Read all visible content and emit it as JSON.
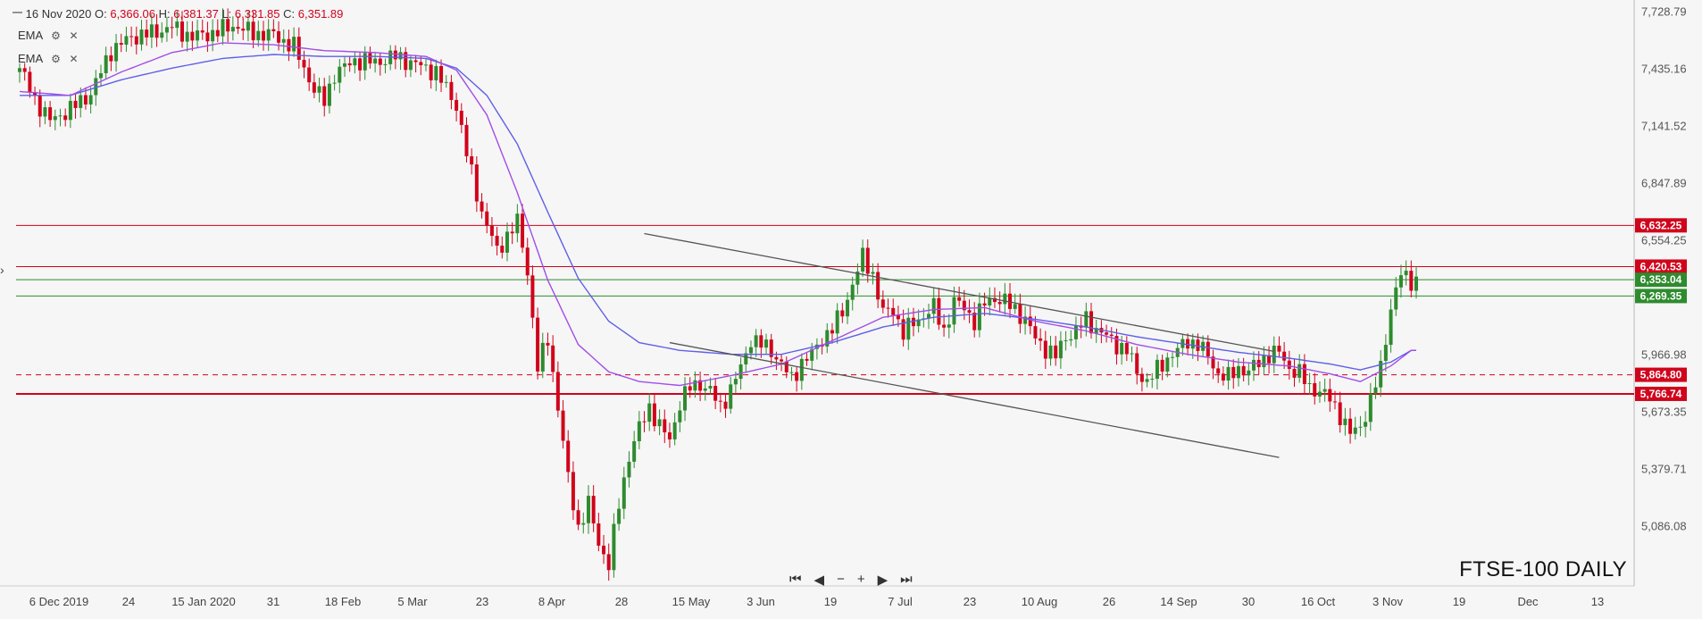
{
  "header": {
    "date": "16 Nov 2020",
    "o_label": "O:",
    "o_value": "6,366.06",
    "h_label": "H:",
    "h_value": "6,381.37",
    "l_label": "L:",
    "l_value": "6,331.85",
    "c_label": "C:",
    "c_value": "6,351.89"
  },
  "indicators": [
    {
      "label": "EMA",
      "color": "#a24de8"
    },
    {
      "label": "EMA",
      "color": "#5f5fe8"
    }
  ],
  "toolbar": {
    "first": "⏮",
    "prev": "◀",
    "zoom_out": "−",
    "zoom_in": "+",
    "next": "▶",
    "last": "⏭"
  },
  "watermark": "FTSE-100 DAILY",
  "chart_data": {
    "type": "candlestick",
    "title": "FTSE-100 DAILY",
    "x_tick_labels": [
      "6 Dec 2019",
      "24",
      "15 Jan 2020",
      "31",
      "18 Feb",
      "5 Mar",
      "23",
      "8 Apr",
      "28",
      "15 May",
      "3 Jun",
      "19",
      "7 Jul",
      "23",
      "10 Aug",
      "26",
      "14 Sep",
      "30",
      "16 Oct",
      "3 Nov",
      "19",
      "Dec",
      "13"
    ],
    "y_tick_labels": [
      "7,728.79",
      "7,435.16",
      "7,141.52",
      "6,847.89",
      "6,554.25",
      "5,966.98",
      "5,673.35",
      "5,379.71",
      "5,086.08"
    ],
    "ylim": [
      4780,
      7790
    ],
    "price_marker_labels": [
      {
        "label": "6,632.25",
        "value": 6632.25,
        "color": "#d0021b"
      },
      {
        "label": "6,420.53",
        "value": 6420.53,
        "color": "#d0021b"
      },
      {
        "label": "6,353.04",
        "value": 6353.04,
        "color": "#2e8b2e"
      },
      {
        "label": "6,269.35",
        "value": 6269.35,
        "color": "#2e8b2e"
      },
      {
        "label": "5,864.80",
        "value": 5864.8,
        "color": "#d0021b"
      },
      {
        "label": "5,766.74",
        "value": 5766.74,
        "color": "#d0021b"
      }
    ],
    "horizontal_lines": [
      {
        "value": 6632.25,
        "color": "#d0021b",
        "style": "solid"
      },
      {
        "value": 6420.53,
        "color": "#d0021b",
        "style": "solid"
      },
      {
        "value": 6353.04,
        "color": "#2e8b2e",
        "style": "solid"
      },
      {
        "value": 6269.35,
        "color": "#2e8b2e",
        "style": "solid"
      },
      {
        "value": 5864.8,
        "color": "#d0021b",
        "style": "dashed"
      },
      {
        "value": 5766.74,
        "color": "#d0021b",
        "style": "solid-thick"
      }
    ],
    "trendlines": [
      {
        "from": {
          "date": "2020-05-22",
          "value": 6590
        },
        "to": {
          "date": "2020-11-12",
          "value": 5985
        }
      },
      {
        "from": {
          "date": "2020-05-29",
          "value": 6030
        },
        "to": {
          "date": "2020-11-13",
          "value": 5440
        }
      }
    ],
    "colors": {
      "up": "#2e8b2e",
      "down": "#d0021b",
      "ema_fast": "#a24de8",
      "ema_slow": "#5f5fe8",
      "trend": "#555555"
    },
    "close_anchors": [
      [
        0,
        7440
      ],
      [
        3,
        7280
      ],
      [
        6,
        7170
      ],
      [
        10,
        7230
      ],
      [
        14,
        7310
      ],
      [
        18,
        7530
      ],
      [
        22,
        7600
      ],
      [
        26,
        7620
      ],
      [
        30,
        7650
      ],
      [
        34,
        7600
      ],
      [
        38,
        7620
      ],
      [
        42,
        7660
      ],
      [
        46,
        7620
      ],
      [
        50,
        7610
      ],
      [
        54,
        7550
      ],
      [
        58,
        7330
      ],
      [
        60,
        7270
      ],
      [
        62,
        7410
      ],
      [
        66,
        7480
      ],
      [
        70,
        7470
      ],
      [
        74,
        7500
      ],
      [
        78,
        7460
      ],
      [
        82,
        7420
      ],
      [
        86,
        7250
      ],
      [
        88,
        7000
      ],
      [
        91,
        6700
      ],
      [
        94,
        6500
      ],
      [
        96,
        6580
      ],
      [
        98,
        6650
      ],
      [
        100,
        6400
      ],
      [
        102,
        5900
      ],
      [
        104,
        6050
      ],
      [
        106,
        5700
      ],
      [
        108,
        5330
      ],
      [
        110,
        5080
      ],
      [
        112,
        5200
      ],
      [
        114,
        5000
      ],
      [
        116,
        4890
      ],
      [
        118,
        5200
      ],
      [
        120,
        5450
      ],
      [
        122,
        5590
      ],
      [
        124,
        5700
      ],
      [
        126,
        5600
      ],
      [
        128,
        5530
      ],
      [
        130,
        5720
      ],
      [
        132,
        5800
      ],
      [
        134,
        5820
      ],
      [
        136,
        5780
      ],
      [
        138,
        5700
      ],
      [
        140,
        5790
      ],
      [
        142,
        5900
      ],
      [
        144,
        6050
      ],
      [
        146,
        6020
      ],
      [
        148,
        5990
      ],
      [
        150,
        5920
      ],
      [
        152,
        5840
      ],
      [
        154,
        5930
      ],
      [
        156,
        5970
      ],
      [
        158,
        6050
      ],
      [
        160,
        6100
      ],
      [
        162,
        6190
      ],
      [
        164,
        6330
      ],
      [
        166,
        6470
      ],
      [
        168,
        6380
      ],
      [
        170,
        6180
      ],
      [
        172,
        6200
      ],
      [
        174,
        6080
      ],
      [
        176,
        6130
      ],
      [
        178,
        6170
      ],
      [
        180,
        6210
      ],
      [
        182,
        6090
      ],
      [
        184,
        6240
      ],
      [
        186,
        6210
      ],
      [
        188,
        6140
      ],
      [
        190,
        6230
      ],
      [
        192,
        6260
      ],
      [
        194,
        6240
      ],
      [
        196,
        6200
      ],
      [
        198,
        6150
      ],
      [
        200,
        6050
      ],
      [
        202,
        6000
      ],
      [
        204,
        5960
      ],
      [
        206,
        6060
      ],
      [
        208,
        6090
      ],
      [
        210,
        6150
      ],
      [
        212,
        6100
      ],
      [
        214,
        6060
      ],
      [
        216,
        6020
      ],
      [
        218,
        5990
      ],
      [
        220,
        5880
      ],
      [
        222,
        5830
      ],
      [
        224,
        5890
      ],
      [
        226,
        5950
      ],
      [
        228,
        5990
      ],
      [
        230,
        6040
      ],
      [
        232,
        6020
      ],
      [
        234,
        5960
      ],
      [
        236,
        5870
      ],
      [
        238,
        5850
      ],
      [
        240,
        5900
      ],
      [
        242,
        5880
      ],
      [
        244,
        5930
      ],
      [
        246,
        5970
      ],
      [
        248,
        5980
      ],
      [
        250,
        5900
      ],
      [
        252,
        5870
      ],
      [
        254,
        5800
      ],
      [
        256,
        5780
      ],
      [
        258,
        5740
      ],
      [
        260,
        5660
      ],
      [
        262,
        5560
      ],
      [
        264,
        5600
      ],
      [
        266,
        5730
      ],
      [
        268,
        5900
      ],
      [
        270,
        6210
      ],
      [
        272,
        6380
      ],
      [
        274,
        6350
      ]
    ],
    "ema_fast_anchors": [
      [
        0,
        7320
      ],
      [
        10,
        7300
      ],
      [
        20,
        7420
      ],
      [
        30,
        7520
      ],
      [
        40,
        7570
      ],
      [
        50,
        7560
      ],
      [
        60,
        7530
      ],
      [
        70,
        7520
      ],
      [
        80,
        7500
      ],
      [
        86,
        7430
      ],
      [
        92,
        7200
      ],
      [
        98,
        6800
      ],
      [
        104,
        6350
      ],
      [
        110,
        6020
      ],
      [
        116,
        5880
      ],
      [
        122,
        5830
      ],
      [
        130,
        5810
      ],
      [
        140,
        5860
      ],
      [
        150,
        5920
      ],
      [
        160,
        6040
      ],
      [
        170,
        6160
      ],
      [
        180,
        6200
      ],
      [
        190,
        6210
      ],
      [
        200,
        6140
      ],
      [
        210,
        6090
      ],
      [
        220,
        6020
      ],
      [
        230,
        5970
      ],
      [
        240,
        5930
      ],
      [
        250,
        5910
      ],
      [
        258,
        5870
      ],
      [
        264,
        5830
      ],
      [
        270,
        5910
      ],
      [
        274,
        5990
      ]
    ],
    "ema_slow_anchors": [
      [
        0,
        7300
      ],
      [
        10,
        7300
      ],
      [
        20,
        7380
      ],
      [
        30,
        7440
      ],
      [
        40,
        7490
      ],
      [
        50,
        7510
      ],
      [
        60,
        7500
      ],
      [
        70,
        7500
      ],
      [
        80,
        7490
      ],
      [
        86,
        7440
      ],
      [
        92,
        7300
      ],
      [
        98,
        7050
      ],
      [
        104,
        6700
      ],
      [
        110,
        6360
      ],
      [
        116,
        6140
      ],
      [
        122,
        6030
      ],
      [
        130,
        5990
      ],
      [
        140,
        5970
      ],
      [
        150,
        5970
      ],
      [
        160,
        6030
      ],
      [
        170,
        6110
      ],
      [
        180,
        6160
      ],
      [
        190,
        6180
      ],
      [
        200,
        6150
      ],
      [
        210,
        6110
      ],
      [
        220,
        6060
      ],
      [
        230,
        6020
      ],
      [
        240,
        5980
      ],
      [
        250,
        5950
      ],
      [
        258,
        5920
      ],
      [
        264,
        5890
      ],
      [
        270,
        5930
      ],
      [
        274,
        5990
      ]
    ]
  }
}
